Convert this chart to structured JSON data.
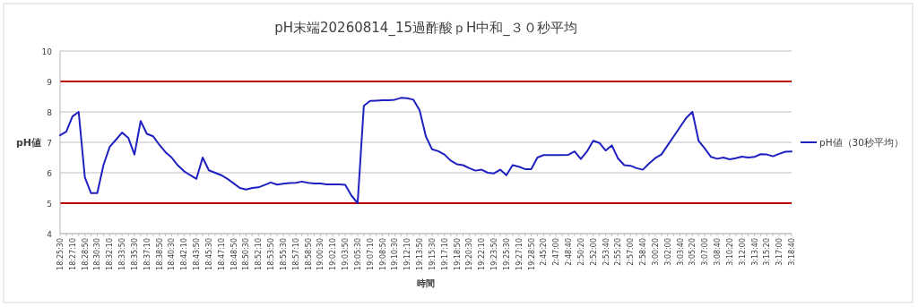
{
  "chart_data": {
    "type": "line",
    "title": "pH末端20260814_15過酢酸ｐH中和_３０秒平均",
    "xlabel": "時間",
    "ylabel": "pH値",
    "categories": [
      "18:25:30",
      null,
      "18:27:10",
      null,
      "18:28:50",
      null,
      "18:30:30",
      null,
      "18:32:10",
      null,
      "18:33:50",
      null,
      "18:35:30",
      null,
      "18:37:10",
      null,
      "18:38:50",
      null,
      "18:40:30",
      null,
      "18:42:10",
      null,
      "18:43:50",
      null,
      "18:45:30",
      null,
      "18:47:10",
      null,
      "18:48:50",
      null,
      "18:50:30",
      null,
      "18:52:10",
      null,
      "18:53:50",
      null,
      "18:55:30",
      null,
      "18:57:10",
      null,
      "18:58:50",
      null,
      "19:00:30",
      null,
      "19:02:10",
      null,
      "19:03:50",
      null,
      "19:05:30",
      null,
      "19:07:10",
      null,
      "19:08:50",
      null,
      "19:10:30",
      null,
      "19:12:10",
      null,
      "19:13:50",
      null,
      "19:15:30",
      null,
      "19:17:10",
      null,
      "19:18:50",
      null,
      "19:20:30",
      null,
      "19:22:10",
      null,
      "19:23:50",
      null,
      "19:25:30",
      null,
      "19:27:10",
      null,
      "19:28:50",
      null,
      "2:45:20",
      null,
      "2:47:00",
      null,
      "2:48:40",
      null,
      "2:50:20",
      null,
      "2:52:00",
      null,
      "2:53:40",
      null,
      "2:55:20",
      null,
      "2:57:00",
      null,
      "2:58:40",
      null,
      "3:00:20",
      null,
      "3:02:00",
      null,
      "3:03:40",
      null,
      "3:05:20",
      null,
      "3:07:00",
      null,
      "3:08:40",
      null,
      "3:10:20",
      null,
      "3:12:00",
      null,
      "3:13:40",
      null,
      "3:15:20",
      null,
      "3:17:00",
      null,
      "3:18:40"
    ],
    "series": [
      {
        "name": "pH値（30秒平均）",
        "color": "#2020c0",
        "values": [
          7.23,
          7.35,
          7.85,
          8.0,
          5.85,
          5.33,
          5.33,
          6.25,
          6.85,
          7.08,
          7.32,
          7.15,
          6.6,
          7.7,
          7.28,
          7.2,
          6.92,
          6.68,
          6.5,
          6.24,
          6.05,
          5.92,
          5.8,
          6.5,
          6.08,
          6.0,
          5.92,
          5.8,
          5.65,
          5.5,
          5.45,
          5.5,
          5.52,
          5.6,
          5.68,
          5.61,
          5.64,
          5.66,
          5.67,
          5.71,
          5.67,
          5.65,
          5.65,
          5.62,
          5.62,
          5.62,
          5.6,
          5.25,
          5.0,
          8.2,
          8.36,
          8.37,
          8.38,
          8.38,
          8.4,
          8.46,
          8.45,
          8.4,
          8.05,
          7.2,
          6.77,
          6.71,
          6.6,
          6.4,
          6.28,
          6.25,
          6.15,
          6.07,
          6.1,
          6.0,
          5.98,
          6.1,
          5.92,
          6.25,
          6.2,
          6.12,
          6.12,
          6.5,
          6.58,
          6.58,
          6.58,
          6.58,
          6.59,
          6.7,
          6.45,
          6.7,
          7.05,
          6.98,
          6.73,
          6.9,
          6.47,
          6.25,
          6.23,
          6.15,
          6.1,
          6.3,
          6.48,
          6.6,
          6.9,
          7.2,
          7.5,
          7.8,
          8.0,
          7.05,
          6.8,
          6.52,
          6.46,
          6.5,
          6.44,
          6.48,
          6.53,
          6.5,
          6.52,
          6.61,
          6.6,
          6.54,
          6.62,
          6.69,
          6.7
        ]
      }
    ],
    "ylim": [
      4,
      10
    ],
    "yticks": [
      4,
      5,
      6,
      7,
      8,
      9,
      10
    ],
    "grid": "y",
    "legend": "right",
    "ref_lines": [
      {
        "axis": "y",
        "value": 9,
        "color": "#c00000"
      },
      {
        "axis": "y",
        "value": 5,
        "color": "#c00000"
      }
    ]
  }
}
